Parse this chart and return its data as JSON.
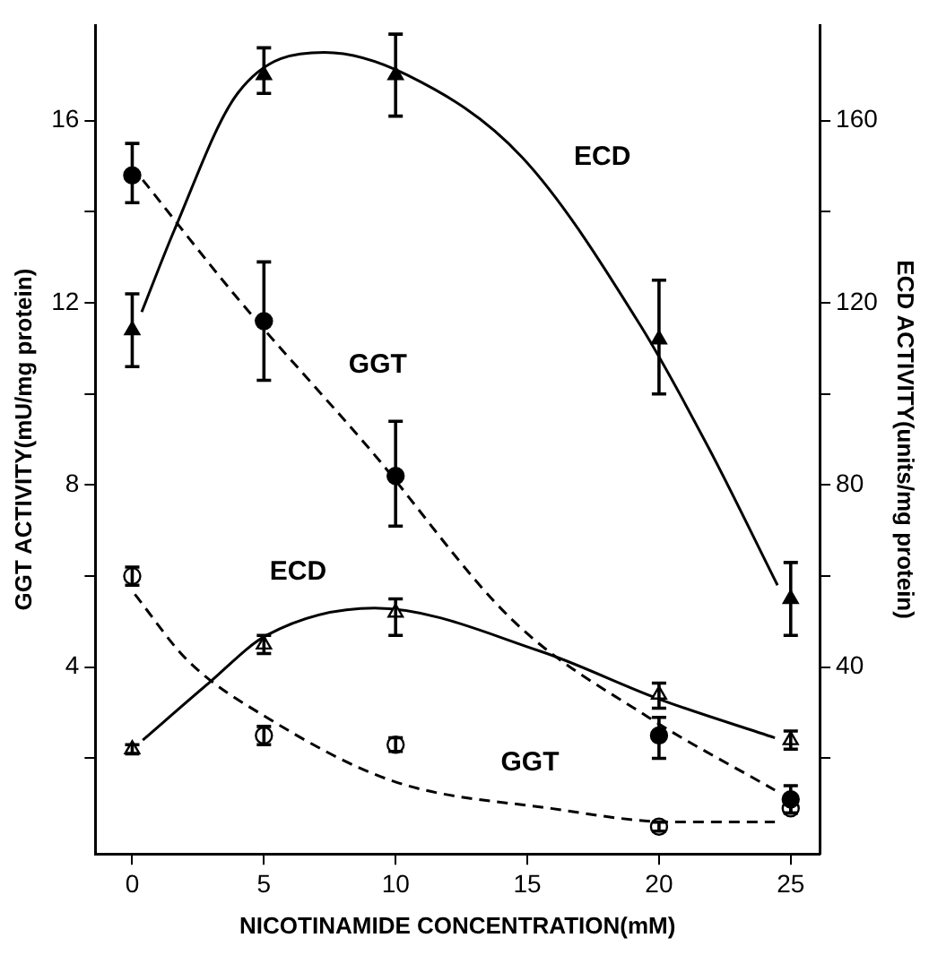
{
  "chart_data": {
    "type": "scatter",
    "xlabel": "NICOTINAMIDE CONCENTRATION(mM)",
    "ylabel": "GGT ACTIVITY(mU/mg protein)",
    "y2label": "ECD ACTIVITY(units/mg protein)",
    "x": [
      0,
      5,
      10,
      20,
      25
    ],
    "xlim": [
      -1.4,
      26.1
    ],
    "xticks": [
      0,
      5,
      10,
      15,
      20,
      25
    ],
    "ylim": [
      -0.1,
      18.1
    ],
    "yticks": [
      {
        "value": 2,
        "label": null
      },
      4,
      {
        "value": 6,
        "label": null
      },
      8,
      {
        "value": 10,
        "label": null
      },
      12,
      {
        "value": 14,
        "label": null
      },
      16
    ],
    "y2lim": [
      -1,
      181
    ],
    "y2ticks": [
      {
        "value": 20,
        "label": null
      },
      40,
      {
        "value": 60,
        "label": null
      },
      80,
      {
        "value": 100,
        "label": null
      },
      120,
      {
        "value": 140,
        "label": null
      },
      160
    ],
    "grid": false,
    "legend": false,
    "series": [
      {
        "axis": "y2",
        "marker": "triangle",
        "color": "#000000",
        "values": [
          114,
          170,
          170,
          112,
          55
        ],
        "errors": [
          [
            106,
            122
          ],
          [
            166,
            176
          ],
          [
            161,
            179
          ],
          [
            100,
            125
          ],
          [
            47,
            63
          ]
        ]
      },
      {
        "marker": "circle",
        "color": "#000000",
        "values": [
          14.8,
          11.6,
          8.2,
          2.5,
          1.1
        ],
        "errors": [
          [
            14.2,
            15.5
          ],
          [
            10.3,
            12.9
          ],
          [
            7.1,
            9.4
          ],
          [
            2.0,
            2.9
          ],
          [
            0.8,
            1.4
          ]
        ]
      },
      {
        "axis": "y2",
        "marker": "triangle",
        "color": "#ffffff",
        "values": [
          22,
          45,
          52,
          34,
          24
        ],
        "errors": [
          [
            21,
            23
          ],
          [
            43,
            47
          ],
          [
            47,
            55
          ],
          [
            31,
            36.5
          ],
          [
            22,
            26
          ]
        ]
      },
      {
        "marker": "circle",
        "color": "#ffffff",
        "values": [
          6.0,
          2.5,
          2.3,
          0.5,
          0.9
        ],
        "errors": [
          [
            5.8,
            6.2
          ],
          [
            2.3,
            2.7
          ],
          [
            2.15,
            2.45
          ],
          [
            0.4,
            0.6
          ],
          [
            0.8,
            1.0
          ]
        ]
      },
      {
        "type": "line",
        "axis": "y2",
        "marker": "none",
        "line_style": "solid",
        "color": "#000000",
        "x": [
          0.36,
          1.6,
          4.0,
          7.3,
          10.45,
          14.8,
          19.3,
          21.9,
          24.5
        ],
        "values": [
          118,
          136,
          166,
          175,
          170,
          152,
          115,
          88,
          58
        ]
      },
      {
        "type": "line",
        "marker": "none",
        "line_style": "dashed",
        "color": "#000000",
        "x": [
          0.4,
          4.0,
          9.0,
          14.5,
          19.6,
          24.4
        ],
        "values": [
          14.7,
          12.1,
          8.8,
          5.0,
          2.9,
          1.3
        ]
      },
      {
        "type": "line",
        "axis": "y2",
        "marker": "none",
        "line_style": "solid",
        "color": "#000000",
        "x": [
          0.4,
          2.9,
          5.1,
          9.2,
          15.5,
          20,
          24.4
        ],
        "values": [
          24,
          36.5,
          47,
          53,
          43.5,
          33,
          24.5
        ]
      },
      {
        "type": "line",
        "marker": "none",
        "line_style": "dashed",
        "color": "#000000",
        "x": [
          0.1,
          2.1,
          5.1,
          9.9,
          15.9,
          20.6,
          24.4
        ],
        "values": [
          5.6,
          4.15,
          2.9,
          1.5,
          0.9,
          0.6,
          0.6
        ]
      }
    ],
    "annotations": [
      "ECD",
      "GGT",
      "ECD",
      "GGT"
    ]
  }
}
